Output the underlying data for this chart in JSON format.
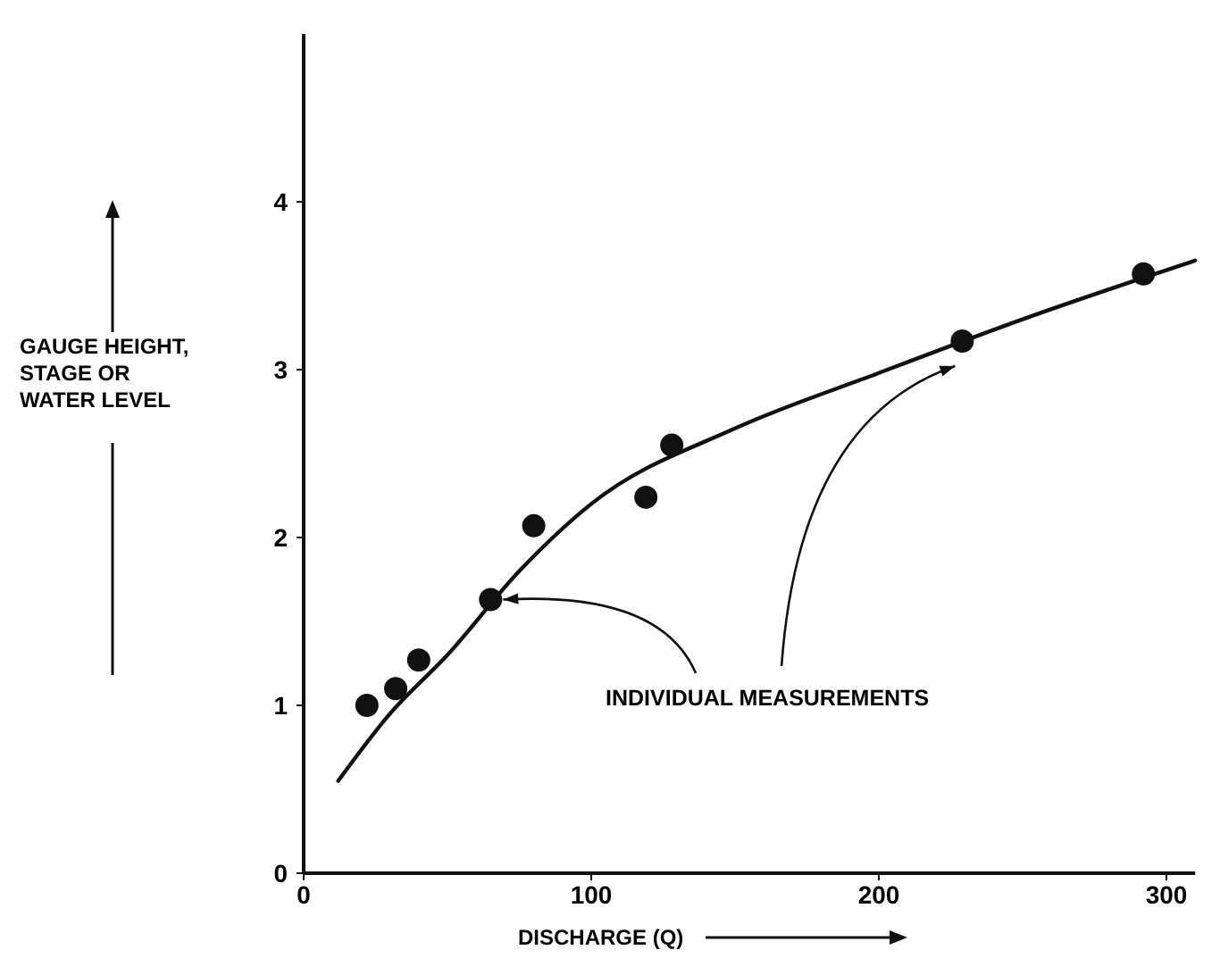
{
  "chart_data": {
    "type": "scatter",
    "xlabel": "DISCHARGE (Q)",
    "ylabel": "GAUGE HEIGHT, STAGE OR WATER LEVEL",
    "xlim": [
      0,
      310
    ],
    "ylim": [
      0,
      5
    ],
    "xticks": [
      0,
      100,
      200,
      300
    ],
    "yticks": [
      0,
      1,
      2,
      3,
      4
    ],
    "grid": false,
    "annotations": [
      {
        "text": "INDIVIDUAL MEASUREMENTS",
        "x": 65,
        "y": 1.63
      }
    ],
    "series": [
      {
        "color": "#111111",
        "marker": "circle",
        "x": [
          22,
          32,
          40,
          65,
          80,
          119,
          128,
          229,
          292
        ],
        "values": [
          1.0,
          1.1,
          1.27,
          1.63,
          2.07,
          2.24,
          2.55,
          3.17,
          3.57
        ]
      },
      {
        "type": "line",
        "color": "#111111",
        "line_style": "solid",
        "marker": "none",
        "x": [
          12,
          30,
          50,
          75,
          100,
          150,
          200,
          250,
          310
        ],
        "values": [
          0.55,
          0.95,
          1.3,
          1.8,
          2.2,
          2.65,
          2.98,
          3.3,
          3.65
        ]
      }
    ]
  }
}
